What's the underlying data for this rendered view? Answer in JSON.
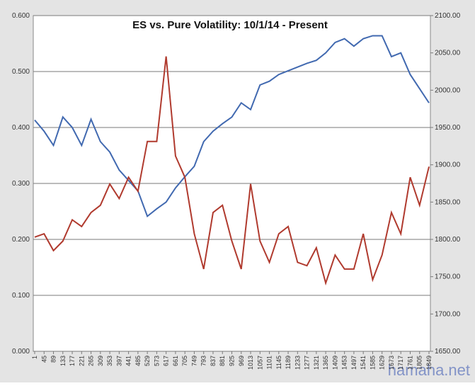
{
  "chart_data": {
    "type": "line",
    "title": "ES vs. Pure Volatility:  10/1/14 - Present",
    "watermark": "hamaha.net",
    "x": [
      1,
      45,
      89,
      133,
      177,
      221,
      265,
      309,
      353,
      397,
      441,
      485,
      529,
      573,
      617,
      661,
      705,
      749,
      793,
      837,
      881,
      925,
      969,
      1013,
      1057,
      1101,
      1145,
      1189,
      1233,
      1277,
      1321,
      1365,
      1409,
      1453,
      1497,
      1541,
      1585,
      1629,
      1673,
      1717,
      1761,
      1805,
      1849
    ],
    "xlim": [
      1,
      1849
    ],
    "xticks": [
      1,
      45,
      89,
      133,
      177,
      221,
      265,
      309,
      353,
      397,
      441,
      485,
      529,
      573,
      617,
      661,
      705,
      749,
      793,
      837,
      881,
      925,
      969,
      1013,
      1057,
      1101,
      1145,
      1189,
      1233,
      1277,
      1321,
      1365,
      1409,
      1453,
      1497,
      1541,
      1585,
      1629,
      1673,
      1717,
      1761,
      1805,
      1849
    ],
    "ylim": [
      0,
      0.6
    ],
    "yticks": [
      {
        "value": 0,
        "label": "0.000"
      },
      {
        "value": 0.1,
        "label": "0.100"
      },
      {
        "value": 0.2,
        "label": "0.200"
      },
      {
        "value": 0.3,
        "label": "0.300"
      },
      {
        "value": 0.4,
        "label": "0.400"
      },
      {
        "value": 0.5,
        "label": "0.500"
      },
      {
        "value": 0.6,
        "label": "0.600"
      }
    ],
    "y2lim": [
      1650,
      2100
    ],
    "y2ticks": [
      {
        "value": 1650,
        "label": "1650.00"
      },
      {
        "value": 1700,
        "label": "1700.00"
      },
      {
        "value": 1750,
        "label": "1750.00"
      },
      {
        "value": 1800,
        "label": "1800.00"
      },
      {
        "value": 1850,
        "label": "1850.00"
      },
      {
        "value": 1900,
        "label": "1900.00"
      },
      {
        "value": 1950,
        "label": "1950.00"
      },
      {
        "value": 2000,
        "label": "2000.00"
      },
      {
        "value": 2050,
        "label": "2050.00"
      },
      {
        "value": 2100,
        "label": "2100.00"
      }
    ],
    "grid": true,
    "series": [
      {
        "color": "#4169b0",
        "axis": "y2",
        "values": [
          1960,
          1945,
          1926,
          1964,
          1950,
          1926,
          1961,
          1931,
          1917,
          1893,
          1879,
          1865,
          1831,
          1841,
          1850,
          1869,
          1884,
          1898,
          1931,
          1945,
          1955,
          1964,
          1983,
          1974,
          2007,
          2012,
          2021,
          2026,
          2031,
          2036,
          2040,
          2050,
          2064,
          2069,
          2059,
          2069,
          2073,
          2073,
          2045,
          2050,
          2021,
          2002,
          1983
        ]
      },
      {
        "color": "#b03a2e",
        "values": [
          0.204,
          0.21,
          0.18,
          0.197,
          0.235,
          0.223,
          0.248,
          0.261,
          0.299,
          0.273,
          0.311,
          0.286,
          0.375,
          0.375,
          0.527,
          0.349,
          0.311,
          0.21,
          0.147,
          0.248,
          0.261,
          0.197,
          0.147,
          0.299,
          0.197,
          0.159,
          0.21,
          0.223,
          0.159,
          0.153,
          0.185,
          0.122,
          0.172,
          0.147,
          0.147,
          0.21,
          0.128,
          0.172,
          0.248,
          0.21,
          0.311,
          0.261,
          0.33
        ]
      }
    ]
  }
}
